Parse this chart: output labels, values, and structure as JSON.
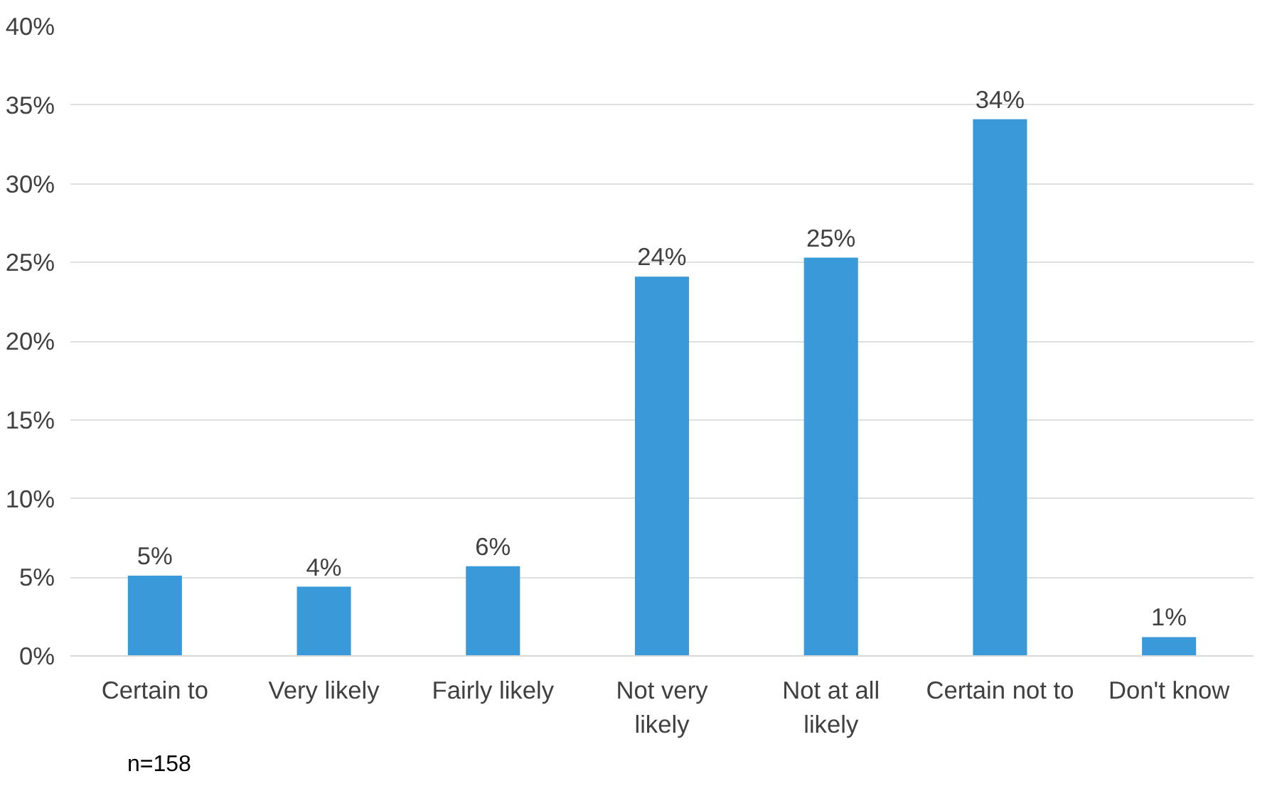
{
  "chart_data": {
    "type": "bar",
    "categories": [
      "Certain to",
      "Very likely",
      "Fairly likely",
      "Not very likely",
      "Not at all likely",
      "Certain not to",
      "Don't know"
    ],
    "values": [
      5.1,
      4.4,
      5.7,
      24.1,
      25.3,
      34.1,
      1.2
    ],
    "value_labels": [
      "5%",
      "4%",
      "6%",
      "24%",
      "25%",
      "34%",
      "1%"
    ],
    "color": "#3a9ad9",
    "ylim": [
      0,
      40
    ],
    "yticks": [
      {
        "value": 0,
        "label": "0%"
      },
      {
        "value": 5,
        "label": "5%"
      },
      {
        "value": 10,
        "label": "10%"
      },
      {
        "value": 15,
        "label": "15%"
      },
      {
        "value": 20,
        "label": "20%"
      },
      {
        "value": 25,
        "label": "25%"
      },
      {
        "value": 30,
        "label": "30%"
      },
      {
        "value": 35,
        "label": "35%"
      },
      {
        "value": 40,
        "label": "40%"
      }
    ],
    "grid": "y",
    "annotations": [
      "n=158"
    ]
  }
}
